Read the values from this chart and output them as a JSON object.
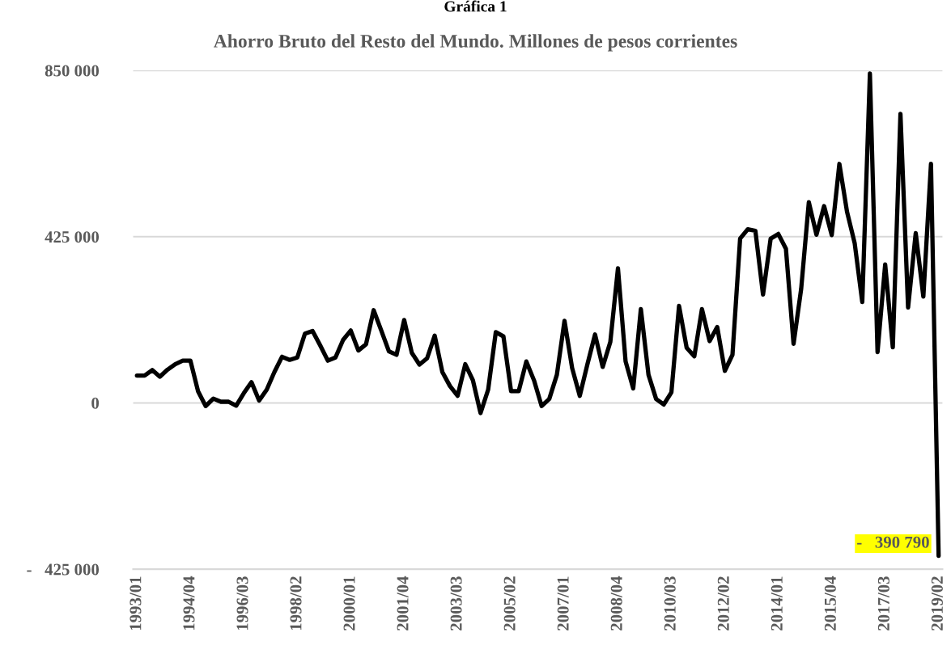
{
  "chart_data": {
    "type": "line",
    "title": "Gráfica 1",
    "subtitle": "Ahorro Bruto del Resto del Mundo. Millones de pesos corrientes",
    "categories": [
      "1993/01",
      null,
      null,
      null,
      null,
      null,
      null,
      "1994/04",
      null,
      null,
      null,
      null,
      null,
      null,
      "1996/03",
      null,
      null,
      null,
      null,
      null,
      null,
      "1998/02",
      null,
      null,
      null,
      null,
      null,
      null,
      "2000/01",
      null,
      null,
      null,
      null,
      null,
      null,
      "2001/04",
      null,
      null,
      null,
      null,
      null,
      null,
      "2003/03",
      null,
      null,
      null,
      null,
      null,
      null,
      "2005/02",
      null,
      null,
      null,
      null,
      null,
      null,
      "2007/01",
      null,
      null,
      null,
      null,
      null,
      null,
      "2008/04",
      null,
      null,
      null,
      null,
      null,
      null,
      "2010/03",
      null,
      null,
      null,
      null,
      null,
      null,
      "2012/02",
      null,
      null,
      null,
      null,
      null,
      null,
      "2014/01",
      null,
      null,
      null,
      null,
      null,
      null,
      "2015/04",
      null,
      null,
      null,
      null,
      null,
      null,
      "2017/03",
      null,
      null,
      null,
      null,
      null,
      null,
      "2019/02"
    ],
    "series": [
      {
        "color": "#000000",
        "values": [
          70000,
          70000,
          84000,
          67000,
          85000,
          99000,
          108000,
          108000,
          30000,
          -8000,
          11000,
          3000,
          3000,
          -7000,
          25000,
          53000,
          6000,
          34000,
          79000,
          118000,
          110000,
          116000,
          177000,
          184000,
          147000,
          108000,
          116000,
          161000,
          185000,
          134000,
          150000,
          237000,
          185000,
          132000,
          123000,
          212000,
          128000,
          98000,
          114000,
          172000,
          79000,
          43000,
          18000,
          99000,
          58000,
          -26000,
          34000,
          181000,
          170000,
          30000,
          30000,
          106000,
          58000,
          -8000,
          10000,
          72000,
          210000,
          89000,
          18000,
          99000,
          175000,
          92000,
          156000,
          344000,
          106000,
          37000,
          240000,
          72000,
          10000,
          -4000,
          27000,
          248000,
          141000,
          119000,
          240000,
          158000,
          194000,
          82000,
          123000,
          420000,
          444000,
          440000,
          277000,
          420000,
          432000,
          394000,
          151000,
          292000,
          513000,
          430000,
          503000,
          429000,
          611000,
          489000,
          409000,
          258000,
          842000,
          130000,
          354000,
          142000,
          739000,
          244000,
          434000,
          272000,
          611000,
          -390790
        ],
        "value_labels": [
          null,
          null,
          null,
          null,
          null,
          null,
          null,
          null,
          null,
          null,
          null,
          null,
          null,
          null,
          null,
          null,
          null,
          null,
          null,
          null,
          null,
          null,
          null,
          null,
          null,
          null,
          null,
          null,
          null,
          null,
          null,
          null,
          null,
          null,
          null,
          null,
          null,
          null,
          null,
          null,
          null,
          null,
          null,
          null,
          null,
          null,
          null,
          null,
          null,
          null,
          null,
          null,
          null,
          null,
          null,
          null,
          null,
          null,
          null,
          null,
          null,
          null,
          null,
          null,
          null,
          null,
          null,
          null,
          null,
          null,
          null,
          null,
          null,
          null,
          null,
          null,
          null,
          null,
          null,
          null,
          null,
          null,
          null,
          null,
          null,
          null,
          null,
          null,
          null,
          null,
          null,
          null,
          null,
          null,
          null,
          null,
          null,
          null,
          null,
          null,
          null,
          null,
          null,
          null,
          null,
          "-   390 790"
        ]
      }
    ],
    "ylim": [
      -425000,
      850000
    ],
    "yticks": [
      {
        "value": -425000,
        "label": "-   425 000"
      },
      {
        "value": 0,
        "label": "0"
      },
      {
        "value": 425000,
        "label": "425 000"
      },
      {
        "value": 850000,
        "label": "850 000"
      }
    ],
    "grid": "y",
    "marker": "none",
    "line_style": "solid"
  }
}
